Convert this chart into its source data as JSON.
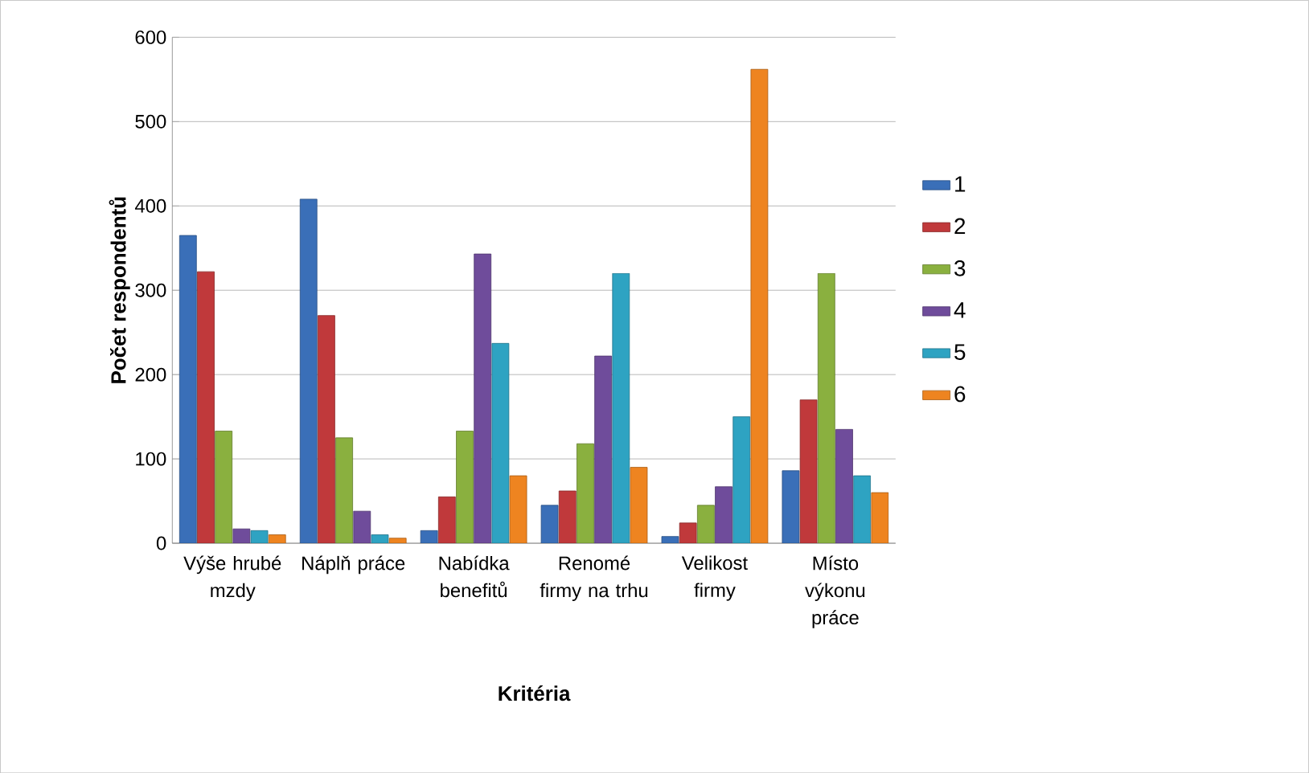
{
  "chart_data": {
    "type": "bar",
    "xlabel": "Kritéria",
    "ylabel": "Počet respondentů",
    "categories": [
      "Výše hrubé mzdy",
      "Náplň práce",
      "Nabídka benefitů",
      "Renomé firmy na trhu",
      "Velikost firmy",
      "Místo výkonu práce"
    ],
    "series": [
      {
        "name": "1",
        "color": "#3a6fb8",
        "values": [
          365,
          408,
          15,
          45,
          8,
          86
        ]
      },
      {
        "name": "2",
        "color": "#c0393b",
        "values": [
          322,
          270,
          55,
          62,
          24,
          170
        ]
      },
      {
        "name": "3",
        "color": "#8ab03f",
        "values": [
          133,
          125,
          133,
          118,
          45,
          320
        ]
      },
      {
        "name": "4",
        "color": "#6f4c9b",
        "values": [
          17,
          38,
          343,
          222,
          67,
          135
        ]
      },
      {
        "name": "5",
        "color": "#2ea3c2",
        "values": [
          15,
          10,
          237,
          320,
          150,
          80
        ]
      },
      {
        "name": "6",
        "color": "#ee8420",
        "values": [
          10,
          6,
          80,
          90,
          562,
          60
        ]
      }
    ],
    "ylim": [
      0,
      600
    ],
    "yticks": [
      0,
      100,
      200,
      300,
      400,
      500,
      600
    ],
    "grid": "y",
    "legend": "right"
  }
}
